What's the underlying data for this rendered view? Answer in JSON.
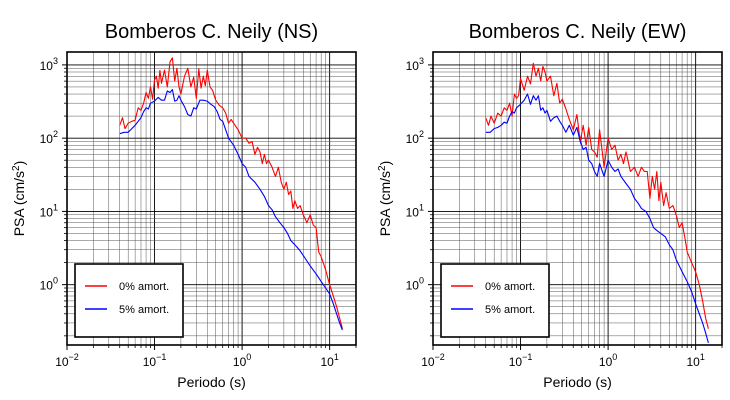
{
  "chart_data": [
    {
      "type": "line",
      "title": "Bomberos C. Neily (NS)",
      "xlabel": "Periodo (s)",
      "ylabel_main": "PSA (cm/s",
      "ylabel_sup": "2",
      "ylabel_tail": ")",
      "x_scale": "log",
      "y_scale": "log",
      "xlim": [
        0.01,
        20
      ],
      "ylim": [
        0.15,
        1500
      ],
      "x_ticks": [
        {
          "base": "10",
          "exp": "−2",
          "value": 0.01
        },
        {
          "base": "10",
          "exp": "−1",
          "value": 0.1
        },
        {
          "base": "10",
          "exp": "0",
          "value": 1
        },
        {
          "base": "10",
          "exp": "1",
          "value": 10
        }
      ],
      "y_ticks": [
        {
          "base": "10",
          "exp": "0",
          "value": 1
        },
        {
          "base": "10",
          "exp": "1",
          "value": 10
        },
        {
          "base": "10",
          "exp": "2",
          "value": 100
        },
        {
          "base": "10",
          "exp": "3",
          "value": 1000
        }
      ],
      "grid": true,
      "legend_position": "bottom-left",
      "series": [
        {
          "name": "0% amort.",
          "color": "#ff0000",
          "x": [
            0.04,
            0.043,
            0.046,
            0.05,
            0.055,
            0.06,
            0.065,
            0.07,
            0.075,
            0.08,
            0.085,
            0.09,
            0.095,
            0.1,
            0.105,
            0.11,
            0.115,
            0.12,
            0.13,
            0.14,
            0.15,
            0.16,
            0.17,
            0.18,
            0.19,
            0.2,
            0.22,
            0.24,
            0.26,
            0.28,
            0.3,
            0.32,
            0.34,
            0.36,
            0.38,
            0.4,
            0.43,
            0.46,
            0.5,
            0.55,
            0.6,
            0.65,
            0.7,
            0.75,
            0.8,
            0.9,
            1.0,
            1.1,
            1.2,
            1.3,
            1.4,
            1.5,
            1.6,
            1.7,
            1.8,
            1.9,
            2.0,
            2.2,
            2.4,
            2.6,
            2.8,
            3.0,
            3.2,
            3.4,
            3.6,
            3.8,
            4.0,
            4.3,
            4.6,
            5.0,
            5.5,
            6.0,
            6.5,
            7.0,
            7.5,
            8.0,
            9.0,
            10.0,
            11.0,
            12.0,
            13.0,
            14.0
          ],
          "y": [
            150,
            190,
            135,
            160,
            170,
            175,
            260,
            240,
            300,
            420,
            350,
            500,
            340,
            620,
            700,
            480,
            840,
            560,
            850,
            500,
            1100,
            1250,
            600,
            900,
            500,
            400,
            700,
            900,
            500,
            680,
            350,
            880,
            480,
            700,
            520,
            850,
            500,
            450,
            330,
            280,
            260,
            220,
            160,
            180,
            160,
            130,
            100,
            100,
            85,
            90,
            60,
            75,
            65,
            45,
            60,
            45,
            50,
            40,
            30,
            40,
            25,
            20,
            25,
            17,
            19,
            11,
            14,
            11,
            12,
            9,
            7,
            9,
            6.5,
            6,
            2.8,
            2.4,
            1.6,
            1.0,
            0.7,
            0.5,
            0.35,
            0.25
          ]
        },
        {
          "name": "5% amort.",
          "color": "#0000ff",
          "x": [
            0.04,
            0.045,
            0.05,
            0.055,
            0.06,
            0.065,
            0.07,
            0.075,
            0.08,
            0.085,
            0.09,
            0.1,
            0.11,
            0.12,
            0.13,
            0.14,
            0.15,
            0.16,
            0.17,
            0.18,
            0.19,
            0.2,
            0.22,
            0.24,
            0.26,
            0.28,
            0.3,
            0.33,
            0.36,
            0.4,
            0.44,
            0.48,
            0.52,
            0.56,
            0.6,
            0.65,
            0.7,
            0.8,
            0.9,
            1.0,
            1.1,
            1.2,
            1.4,
            1.6,
            1.8,
            2.0,
            2.2,
            2.4,
            2.7,
            3.0,
            3.3,
            3.6,
            4.0,
            4.5,
            5.0,
            5.5,
            6.0,
            7.0,
            8.0,
            9.0,
            10.0,
            11.0,
            12.0,
            13.0,
            14.0
          ],
          "y": [
            115,
            120,
            120,
            135,
            150,
            170,
            190,
            230,
            260,
            250,
            300,
            320,
            360,
            330,
            330,
            440,
            420,
            460,
            320,
            330,
            380,
            330,
            270,
            210,
            200,
            260,
            250,
            330,
            330,
            320,
            290,
            270,
            230,
            180,
            170,
            130,
            100,
            80,
            60,
            45,
            40,
            30,
            25,
            20,
            16,
            12,
            10.5,
            8.5,
            7,
            6,
            5,
            4,
            3.5,
            3,
            2.5,
            2.1,
            1.8,
            1.4,
            1.1,
            0.9,
            0.75,
            0.55,
            0.4,
            0.3,
            0.24
          ]
        }
      ]
    },
    {
      "type": "line",
      "title": "Bomberos C. Neily (EW)",
      "xlabel": "Periodo (s)",
      "ylabel_main": "PSA (cm/s",
      "ylabel_sup": "2",
      "ylabel_tail": ")",
      "x_scale": "log",
      "y_scale": "log",
      "xlim": [
        0.01,
        20
      ],
      "ylim": [
        0.15,
        1500
      ],
      "x_ticks": [
        {
          "base": "10",
          "exp": "−2",
          "value": 0.01
        },
        {
          "base": "10",
          "exp": "−1",
          "value": 0.1
        },
        {
          "base": "10",
          "exp": "0",
          "value": 1
        },
        {
          "base": "10",
          "exp": "1",
          "value": 10
        }
      ],
      "y_ticks": [
        {
          "base": "10",
          "exp": "0",
          "value": 1
        },
        {
          "base": "10",
          "exp": "1",
          "value": 10
        },
        {
          "base": "10",
          "exp": "2",
          "value": 100
        },
        {
          "base": "10",
          "exp": "3",
          "value": 1000
        }
      ],
      "grid": true,
      "legend_position": "bottom-left",
      "series": [
        {
          "name": "0% amort.",
          "color": "#ff0000",
          "x": [
            0.04,
            0.043,
            0.046,
            0.05,
            0.055,
            0.06,
            0.065,
            0.07,
            0.075,
            0.08,
            0.085,
            0.09,
            0.095,
            0.1,
            0.11,
            0.12,
            0.13,
            0.14,
            0.15,
            0.16,
            0.17,
            0.18,
            0.19,
            0.2,
            0.22,
            0.24,
            0.26,
            0.28,
            0.3,
            0.33,
            0.36,
            0.4,
            0.44,
            0.48,
            0.52,
            0.56,
            0.6,
            0.65,
            0.7,
            0.75,
            0.8,
            0.9,
            1.0,
            1.1,
            1.2,
            1.3,
            1.4,
            1.5,
            1.6,
            1.8,
            2.0,
            2.2,
            2.4,
            2.6,
            2.8,
            3.0,
            3.2,
            3.4,
            3.6,
            3.8,
            4.0,
            4.3,
            4.6,
            5.0,
            5.5,
            6.0,
            6.5,
            7.0,
            7.5,
            8.0,
            9.0,
            10.0,
            11.0,
            12.0,
            13.0,
            14.0
          ],
          "y": [
            190,
            150,
            200,
            160,
            220,
            200,
            260,
            240,
            300,
            200,
            400,
            350,
            380,
            650,
            450,
            700,
            550,
            1050,
            700,
            900,
            600,
            950,
            800,
            600,
            700,
            380,
            560,
            300,
            340,
            250,
            180,
            130,
            210,
            90,
            150,
            80,
            140,
            70,
            65,
            55,
            130,
            40,
            100,
            70,
            80,
            50,
            60,
            45,
            65,
            35,
            40,
            30,
            40,
            35,
            35,
            15,
            30,
            20,
            35,
            14,
            25,
            12,
            18,
            11,
            12,
            9,
            6,
            7,
            4.5,
            2.8,
            2,
            1.5,
            1.0,
            0.6,
            0.35,
            0.25
          ]
        },
        {
          "name": "5% amort.",
          "color": "#0000ff",
          "x": [
            0.04,
            0.045,
            0.05,
            0.055,
            0.06,
            0.065,
            0.07,
            0.075,
            0.08,
            0.085,
            0.09,
            0.1,
            0.11,
            0.12,
            0.13,
            0.14,
            0.15,
            0.16,
            0.17,
            0.18,
            0.19,
            0.2,
            0.22,
            0.24,
            0.26,
            0.28,
            0.3,
            0.33,
            0.36,
            0.4,
            0.44,
            0.48,
            0.52,
            0.56,
            0.6,
            0.65,
            0.7,
            0.75,
            0.8,
            0.9,
            1.0,
            1.1,
            1.2,
            1.3,
            1.4,
            1.6,
            1.8,
            2.0,
            2.2,
            2.4,
            2.7,
            3.0,
            3.3,
            3.6,
            4.0,
            4.5,
            5.0,
            5.5,
            6.0,
            7.0,
            8.0,
            9.0,
            10.0,
            11.0,
            12.0,
            13.0,
            14.0
          ],
          "y": [
            120,
            120,
            135,
            140,
            150,
            165,
            160,
            200,
            230,
            220,
            260,
            290,
            330,
            400,
            290,
            380,
            330,
            380,
            240,
            260,
            220,
            240,
            170,
            190,
            200,
            170,
            150,
            120,
            150,
            110,
            140,
            90,
            70,
            75,
            50,
            45,
            35,
            30,
            45,
            30,
            50,
            40,
            35,
            38,
            30,
            24,
            20,
            15,
            13,
            11,
            10,
            8,
            6,
            5.5,
            5,
            4.5,
            3.5,
            3,
            2.2,
            1.5,
            1.1,
            0.8,
            0.55,
            0.4,
            0.3,
            0.22,
            0.16
          ]
        }
      ]
    }
  ]
}
